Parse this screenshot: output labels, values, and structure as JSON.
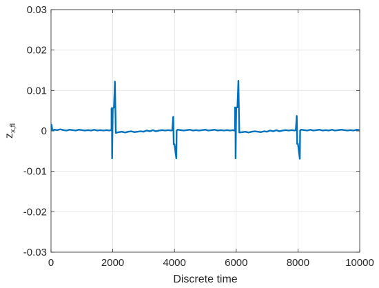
{
  "chart_data": {
    "type": "line",
    "title": "",
    "xlabel": "Discrete time",
    "ylabel_main": "z",
    "ylabel_sub": "x,fl",
    "xlim": [
      0,
      10000
    ],
    "ylim": [
      -0.03,
      0.03
    ],
    "xticks": [
      0,
      2000,
      4000,
      6000,
      8000,
      10000
    ],
    "xtick_labels": [
      "0",
      "2000",
      "4000",
      "6000",
      "8000",
      "10000"
    ],
    "yticks": [
      -0.03,
      -0.02,
      -0.01,
      0,
      0.01,
      0.02,
      0.03
    ],
    "ytick_labels": [
      "-0.03",
      "-0.02",
      "-0.01",
      "0",
      "0.01",
      "0.02",
      "0.03"
    ],
    "grid": true,
    "line_color": "#0072BD",
    "series": [
      {
        "name": "",
        "x": [
          0,
          20,
          40,
          60,
          100,
          200,
          300,
          400,
          500,
          600,
          700,
          800,
          900,
          1000,
          1100,
          1200,
          1300,
          1400,
          1500,
          1600,
          1700,
          1800,
          1900,
          1930,
          1960,
          1961,
          1975,
          1980,
          2000,
          2040,
          2070,
          2100,
          2200,
          2300,
          2400,
          2500,
          2600,
          2700,
          2800,
          2900,
          3000,
          3100,
          3200,
          3300,
          3400,
          3500,
          3600,
          3700,
          3800,
          3900,
          3930,
          3960,
          3961,
          3975,
          3980,
          4000,
          4060,
          4070,
          4100,
          4200,
          4300,
          4400,
          4500,
          4600,
          4700,
          4800,
          4900,
          5000,
          5100,
          5200,
          5300,
          5400,
          5500,
          5600,
          5700,
          5800,
          5900,
          5930,
          5960,
          5961,
          5975,
          5980,
          6000,
          6040,
          6070,
          6100,
          6200,
          6300,
          6400,
          6500,
          6600,
          6700,
          6800,
          6900,
          7000,
          7100,
          7200,
          7300,
          7400,
          7500,
          7600,
          7700,
          7800,
          7900,
          7930,
          7960,
          7961,
          7975,
          7980,
          8000,
          8060,
          8070,
          8100,
          8200,
          8300,
          8400,
          8500,
          8600,
          8700,
          8800,
          8900,
          9000,
          9100,
          9200,
          9300,
          9400,
          9500,
          9600,
          9700,
          9800,
          9900,
          10000
        ],
        "y": [
          0.0016,
          0.0015,
          0.0002,
          0.0001,
          0.0003,
          0.0002,
          0.0004,
          0.0002,
          0.0001,
          0.0003,
          0.0002,
          0.0001,
          0.0003,
          0.0002,
          0.0001,
          0.0002,
          0.0001,
          0.0003,
          0.0001,
          0.0002,
          0.0001,
          0.0002,
          0.0001,
          0.0002,
          0.0001,
          0.0056,
          0.0056,
          -0.0068,
          0.0056,
          0.0058,
          0.0122,
          -0.0005,
          -0.0003,
          -0.0002,
          -0.0004,
          -0.0002,
          -0.0001,
          -0.0003,
          -0.0002,
          -0.0001,
          -0.0002,
          0.0001,
          -0.0001,
          0.0002,
          -0.0001,
          0.0001,
          0.0002,
          0.0001,
          0.0002,
          0.0001,
          0.0002,
          0.0035,
          0.0035,
          -0.0033,
          -0.0033,
          -0.0033,
          -0.0068,
          0.0001,
          0.0003,
          0.0002,
          0.0001,
          0.0002,
          0.0003,
          0.0001,
          0.0002,
          0.0001,
          0.0002,
          0.0003,
          0.0001,
          0.0002,
          0.0003,
          0.0001,
          0.0002,
          0.0001,
          0.0002,
          0.0001,
          0.0002,
          0.0001,
          0.0001,
          0.0058,
          0.0058,
          -0.0068,
          0.0058,
          0.0058,
          0.0124,
          -0.0004,
          -0.0003,
          -0.0002,
          -0.0004,
          -0.0002,
          -0.0001,
          -0.0002,
          -0.0003,
          -0.0001,
          -0.0002,
          0.0001,
          -0.0001,
          0.0002,
          -0.0001,
          0.0001,
          0.0002,
          0.0001,
          0.0002,
          0.0001,
          0.0002,
          0.0037,
          0.0037,
          -0.0032,
          -0.0032,
          -0.0032,
          -0.0069,
          0.0001,
          0.0003,
          0.0002,
          0.0001,
          0.0003,
          0.0001,
          0.0002,
          0.0003,
          0.0001,
          0.0002,
          0.0001,
          0.0003,
          0.0001,
          0.0002,
          0.0003,
          0.0002,
          0.0001,
          0.0002,
          0.0001,
          0.0003,
          0.0002
        ]
      }
    ]
  }
}
